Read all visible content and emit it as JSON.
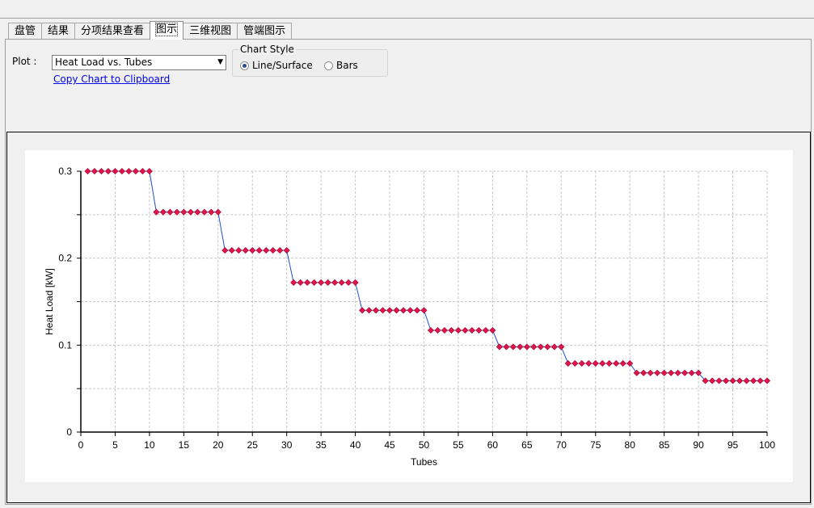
{
  "tabs": [
    {
      "label": "盘管"
    },
    {
      "label": "结果"
    },
    {
      "label": "分项结果查看"
    },
    {
      "label": "图示",
      "active": true
    },
    {
      "label": "三维视图"
    },
    {
      "label": "管端图示"
    }
  ],
  "controls": {
    "plot_label": "Plot :",
    "plot_selected": "Heat Load vs. Tubes",
    "copy_link": "Copy Chart to Clipboard",
    "chart_style_title": "Chart Style",
    "style_options": [
      {
        "label": "Line/Surface",
        "selected": true
      },
      {
        "label": "Bars",
        "selected": false
      }
    ]
  },
  "chart_data": {
    "type": "line",
    "xlabel": "Tubes",
    "ylabel": "Heat Load [kW]",
    "xlim": [
      0,
      100
    ],
    "ylim": [
      0,
      0.3
    ],
    "x_ticks": [
      0,
      5,
      10,
      15,
      20,
      25,
      30,
      35,
      40,
      45,
      50,
      55,
      60,
      65,
      70,
      75,
      80,
      85,
      90,
      95,
      100
    ],
    "y_ticks": [
      "0",
      "0.1",
      "0.2",
      "0.3"
    ],
    "grid": true,
    "line_color": "#1f4fcf",
    "marker_color": "#e0154a",
    "step_levels": [
      0.3,
      0.253,
      0.209,
      0.172,
      0.14,
      0.117,
      0.098,
      0.079,
      0.068,
      0.059
    ],
    "points_per_level": 10
  }
}
